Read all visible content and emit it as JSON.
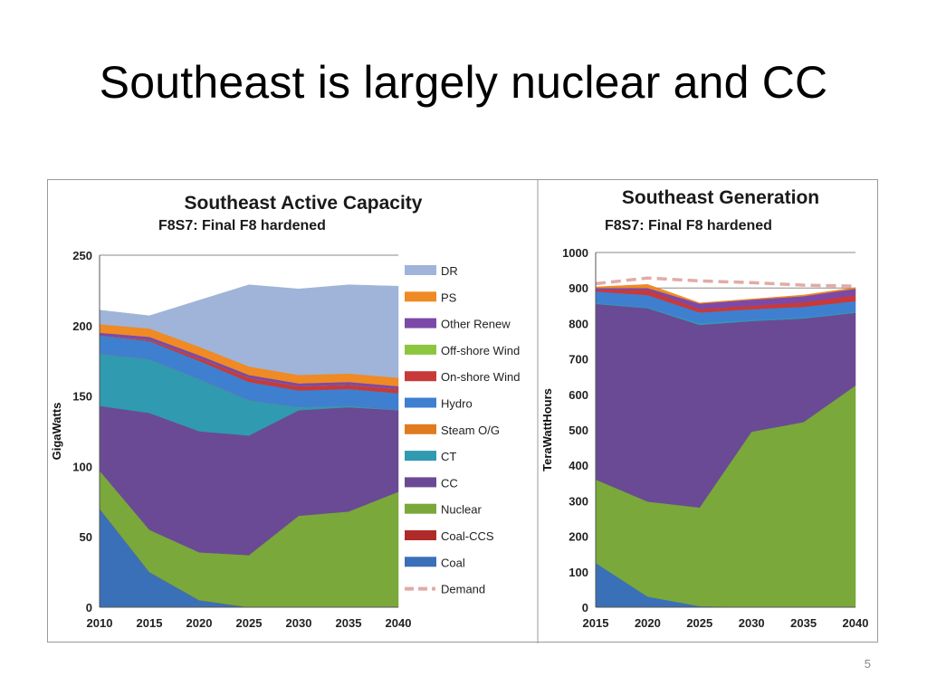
{
  "slide": {
    "title": "Southeast is largely nuclear and CC",
    "page_number": "5"
  },
  "chart_data": [
    {
      "type": "area",
      "stacked": true,
      "title": "Southeast Active Capacity",
      "subtitle": "F8S7: Final F8 hardened",
      "xlabel": "",
      "ylabel": "GigaWatts",
      "ylim": [
        0,
        250
      ],
      "yticks": [
        0,
        50,
        100,
        150,
        200,
        250
      ],
      "x": [
        2010,
        2015,
        2020,
        2025,
        2030,
        2035,
        2040
      ],
      "legend_position": "right",
      "grid": true,
      "series": [
        {
          "name": "Coal",
          "color": "#3a70b8",
          "values": [
            70,
            25,
            5,
            0,
            0,
            0,
            0
          ]
        },
        {
          "name": "Coal-CCS",
          "color": "#b02a2a",
          "values": [
            0,
            0,
            0,
            0,
            0,
            0,
            0
          ]
        },
        {
          "name": "Nuclear",
          "color": "#7aa83a",
          "values": [
            27,
            30,
            34,
            37,
            65,
            68,
            82
          ]
        },
        {
          "name": "CC",
          "color": "#6a4a94",
          "values": [
            46,
            83,
            86,
            85,
            75,
            74,
            58
          ]
        },
        {
          "name": "CT",
          "color": "#2f9ab0",
          "values": [
            37,
            38,
            37,
            25,
            2,
            1,
            0
          ]
        },
        {
          "name": "Steam O/G",
          "color": "#e07b20",
          "values": [
            0,
            0,
            0,
            0,
            0,
            0,
            0
          ]
        },
        {
          "name": "Hydro",
          "color": "#3f7fd0",
          "values": [
            13,
            13,
            13,
            13,
            12,
            12,
            12
          ]
        },
        {
          "name": "On-shore Wind",
          "color": "#c83a3a",
          "values": [
            0,
            1,
            2,
            3,
            3,
            3,
            3
          ]
        },
        {
          "name": "Off-shore Wind",
          "color": "#8cc63e",
          "values": [
            0,
            0,
            0,
            0,
            0,
            0,
            0
          ]
        },
        {
          "name": "Other Renew",
          "color": "#7b4aa8",
          "values": [
            2,
            2,
            2,
            2,
            2,
            2,
            2
          ]
        },
        {
          "name": "PS",
          "color": "#f08a24",
          "values": [
            6,
            6,
            6,
            6,
            6,
            6,
            6
          ]
        },
        {
          "name": "DR",
          "color": "#9fb4d8",
          "values": [
            10,
            9,
            33,
            58,
            61,
            63,
            65
          ]
        }
      ],
      "demand": null,
      "legend": [
        "DR",
        "PS",
        "Other Renew",
        "Off-shore Wind",
        "On-shore Wind",
        "Hydro",
        "Steam O/G",
        "CT",
        "CC",
        "Nuclear",
        "Coal-CCS",
        "Coal",
        "Demand"
      ],
      "legend_colors": [
        "#9fb4d8",
        "#f08a24",
        "#7b4aa8",
        "#8cc63e",
        "#c83a3a",
        "#3f7fd0",
        "#e07b20",
        "#2f9ab0",
        "#6a4a94",
        "#7aa83a",
        "#b02a2a",
        "#3a70b8",
        "#e3aaa8"
      ]
    },
    {
      "type": "area",
      "stacked": true,
      "title": "Southeast Generation",
      "subtitle": "F8S7: Final F8 hardened",
      "xlabel": "",
      "ylabel": "TeraWattHours",
      "ylim": [
        0,
        1000
      ],
      "yticks": [
        0,
        100,
        200,
        300,
        400,
        500,
        600,
        700,
        800,
        900,
        1000
      ],
      "x": [
        2015,
        2020,
        2025,
        2030,
        2035,
        2040
      ],
      "grid": true,
      "series": [
        {
          "name": "Coal",
          "color": "#3a70b8",
          "values": [
            125,
            30,
            3,
            0,
            0,
            0
          ]
        },
        {
          "name": "Nuclear",
          "color": "#7aa83a",
          "values": [
            235,
            268,
            278,
            495,
            522,
            625
          ]
        },
        {
          "name": "CC",
          "color": "#6a4a94",
          "values": [
            495,
            545,
            515,
            312,
            292,
            205
          ]
        },
        {
          "name": "CT",
          "color": "#2f9ab0",
          "values": [
            3,
            2,
            5,
            3,
            3,
            3
          ]
        },
        {
          "name": "Hydro",
          "color": "#3f7fd0",
          "values": [
            32,
            35,
            30,
            30,
            30,
            30
          ]
        },
        {
          "name": "On-shore Wind",
          "color": "#c83a3a",
          "values": [
            5,
            15,
            10,
            10,
            13,
            17
          ]
        },
        {
          "name": "Other Renew",
          "color": "#7b4aa8",
          "values": [
            5,
            5,
            15,
            17,
            17,
            18
          ]
        },
        {
          "name": "PS",
          "color": "#f08a24",
          "values": [
            3,
            10,
            2,
            2,
            3,
            3
          ]
        }
      ],
      "demand": {
        "name": "Demand",
        "color": "#e3aaa8",
        "values": [
          912,
          928,
          920,
          915,
          908,
          905
        ]
      }
    }
  ]
}
